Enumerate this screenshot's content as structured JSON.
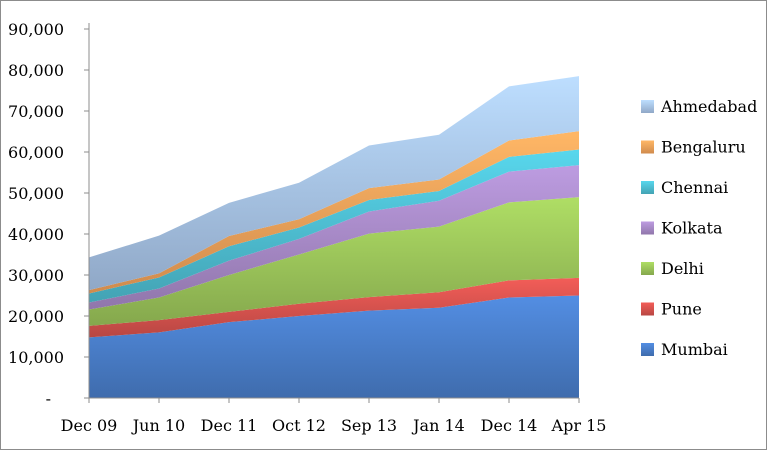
{
  "chart_data": {
    "type": "area",
    "stacked": true,
    "title": "",
    "xlabel": "",
    "ylabel": "",
    "categories": [
      "Dec 09",
      "Jun 10",
      "Dec 11",
      "Oct 12",
      "Sep 13",
      "Jan 14",
      "Dec 14",
      "Apr 15"
    ],
    "ylim": [
      0,
      90000
    ],
    "yticks": [
      {
        "value": 0,
        "label": "-"
      },
      {
        "value": 10000,
        "label": "10,000"
      },
      {
        "value": 20000,
        "label": "20,000"
      },
      {
        "value": 30000,
        "label": "30,000"
      },
      {
        "value": 40000,
        "label": "40,000"
      },
      {
        "value": 50000,
        "label": "50,000"
      },
      {
        "value": 60000,
        "label": "60,000"
      },
      {
        "value": 70000,
        "label": "70,000"
      },
      {
        "value": 80000,
        "label": "80,000"
      },
      {
        "value": 90000,
        "label": "90,000"
      }
    ],
    "grid": false,
    "legend_position": "right",
    "series": [
      {
        "name": "Mumbai",
        "color": "#4a7fcb",
        "values": [
          14800,
          16000,
          18500,
          20000,
          21300,
          22000,
          24500,
          25000
        ]
      },
      {
        "name": "Pune",
        "color": "#d9534f",
        "values": [
          2800,
          3000,
          2500,
          3000,
          3300,
          3800,
          4200,
          4300
        ]
      },
      {
        "name": "Delhi",
        "color": "#9cc65a",
        "values": [
          4000,
          5500,
          9000,
          12000,
          15500,
          16000,
          19000,
          19700
        ]
      },
      {
        "name": "Kolkata",
        "color": "#a98bc9",
        "values": [
          1700,
          2200,
          3500,
          3800,
          5400,
          6300,
          7500,
          7800
        ]
      },
      {
        "name": "Chennai",
        "color": "#4fc0d4",
        "values": [
          2200,
          2700,
          3500,
          2800,
          2800,
          2400,
          3600,
          3800
        ]
      },
      {
        "name": "Bengaluru",
        "color": "#f5a35b",
        "values": [
          800,
          1000,
          2500,
          2000,
          2900,
          2800,
          4000,
          4500
        ]
      },
      {
        "name": "Ahmedabad",
        "color": "#a9c6ea",
        "values": [
          8000,
          9200,
          8100,
          8900,
          10400,
          10900,
          13200,
          13400
        ]
      }
    ],
    "legend_order": [
      "Ahmedabad",
      "Bengaluru",
      "Chennai",
      "Kolkata",
      "Delhi",
      "Pune",
      "Mumbai"
    ]
  }
}
